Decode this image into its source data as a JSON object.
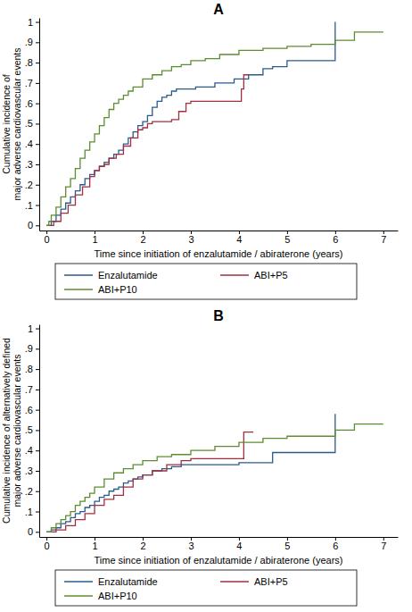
{
  "chart_data": [
    {
      "type": "line",
      "title": "A",
      "xlabel": "Time since initiation of enzalutamide / abiraterone (years)",
      "ylabel": [
        "Cumulative incidence of",
        "major adverse cardiovascular events"
      ],
      "xlim": [
        -0.15,
        7.3
      ],
      "xticks": [
        0,
        1,
        2,
        3,
        4,
        5,
        6,
        7
      ],
      "ylim": [
        -0.025,
        1.02
      ],
      "yticks": [
        0,
        {
          "value": 0.1,
          "label": ".1"
        },
        {
          "value": 0.2,
          "label": ".2"
        },
        {
          "value": 0.3,
          "label": ".3"
        },
        {
          "value": 0.4,
          "label": ".4"
        },
        {
          "value": 0.5,
          "label": ".5"
        },
        {
          "value": 0.6,
          "label": ".6"
        },
        {
          "value": 0.7,
          "label": ".7"
        },
        {
          "value": 0.8,
          "label": ".8"
        },
        {
          "value": 0.9,
          "label": ".9"
        },
        1
      ],
      "grid": false,
      "legend": "bottom",
      "line_style": "step",
      "series": [
        {
          "name": "Enzalutamide",
          "color": "#2a5b8c",
          "x": [
            0,
            0.1,
            0.2,
            0.3,
            0.4,
            0.5,
            0.6,
            0.7,
            0.8,
            0.9,
            1.0,
            1.1,
            1.2,
            1.3,
            1.4,
            1.5,
            1.6,
            1.7,
            1.8,
            1.9,
            2.0,
            2.1,
            2.2,
            2.3,
            2.4,
            2.5,
            2.6,
            2.7,
            2.9,
            3.1,
            3.5,
            3.9,
            4.2,
            4.5,
            4.7,
            5.0,
            6.0
          ],
          "values": [
            0,
            0.02,
            0.05,
            0.08,
            0.11,
            0.14,
            0.17,
            0.2,
            0.23,
            0.25,
            0.27,
            0.29,
            0.31,
            0.33,
            0.35,
            0.37,
            0.4,
            0.43,
            0.46,
            0.49,
            0.51,
            0.54,
            0.58,
            0.61,
            0.63,
            0.64,
            0.66,
            0.67,
            0.67,
            0.68,
            0.7,
            0.72,
            0.74,
            0.77,
            0.78,
            0.81,
            1.0
          ]
        },
        {
          "name": "ABI+P5",
          "color": "#a03040",
          "x": [
            0,
            0.15,
            0.3,
            0.45,
            0.6,
            0.75,
            0.9,
            1.0,
            1.1,
            1.2,
            1.3,
            1.45,
            1.6,
            1.75,
            1.9,
            2.0,
            2.1,
            2.2,
            2.6,
            2.75,
            2.9,
            3.0,
            4.05,
            4.1,
            4.15,
            4.2
          ],
          "values": [
            0,
            0.02,
            0.06,
            0.1,
            0.15,
            0.19,
            0.24,
            0.27,
            0.29,
            0.3,
            0.33,
            0.35,
            0.39,
            0.43,
            0.47,
            0.48,
            0.5,
            0.51,
            0.52,
            0.56,
            0.6,
            0.61,
            0.67,
            0.74,
            0.74,
            0.74
          ]
        },
        {
          "name": "ABI+P10",
          "color": "#5e8c31",
          "x": [
            0,
            0.05,
            0.1,
            0.2,
            0.3,
            0.4,
            0.5,
            0.6,
            0.7,
            0.8,
            0.9,
            1.0,
            1.1,
            1.2,
            1.3,
            1.4,
            1.5,
            1.6,
            1.7,
            1.8,
            2.0,
            2.2,
            2.4,
            2.6,
            2.8,
            3.0,
            3.3,
            3.6,
            4.0,
            4.5,
            5.0,
            5.5,
            6.0,
            6.4,
            7.0
          ],
          "values": [
            0,
            0.02,
            0.05,
            0.09,
            0.14,
            0.19,
            0.23,
            0.28,
            0.33,
            0.37,
            0.41,
            0.45,
            0.49,
            0.53,
            0.57,
            0.6,
            0.62,
            0.64,
            0.66,
            0.68,
            0.72,
            0.74,
            0.76,
            0.78,
            0.79,
            0.81,
            0.82,
            0.84,
            0.86,
            0.87,
            0.88,
            0.89,
            0.91,
            0.95,
            0.95
          ]
        }
      ]
    },
    {
      "type": "line",
      "title": "B",
      "xlabel": "Time since initiation of enzalutamide / abiraterone (years)",
      "ylabel": [
        "Cumulative incidence of alternatively defined",
        "major adverse cardiovascular events"
      ],
      "xlim": [
        -0.15,
        7.3
      ],
      "xticks": [
        0,
        1,
        2,
        3,
        4,
        5,
        6,
        7
      ],
      "ylim": [
        -0.025,
        1.02
      ],
      "yticks": [
        0,
        {
          "value": 0.1,
          "label": ".1"
        },
        {
          "value": 0.2,
          "label": ".2"
        },
        {
          "value": 0.3,
          "label": ".3"
        },
        {
          "value": 0.4,
          "label": ".4"
        },
        {
          "value": 0.5,
          "label": ".5"
        },
        {
          "value": 0.6,
          "label": ".6"
        },
        {
          "value": 0.7,
          "label": ".7"
        },
        {
          "value": 0.8,
          "label": ".8"
        },
        {
          "value": 0.9,
          "label": ".9"
        },
        1
      ],
      "grid": false,
      "legend": "bottom",
      "line_style": "step",
      "series": [
        {
          "name": "Enzalutamide",
          "color": "#2a5b8c",
          "x": [
            0,
            0.1,
            0.2,
            0.3,
            0.4,
            0.5,
            0.6,
            0.7,
            0.8,
            0.9,
            1.0,
            1.1,
            1.2,
            1.3,
            1.4,
            1.5,
            1.6,
            1.7,
            1.8,
            1.9,
            2.0,
            2.2,
            2.4,
            2.6,
            2.8,
            3.0,
            3.5,
            4.0,
            4.7,
            6.0
          ],
          "values": [
            0,
            0.01,
            0.02,
            0.04,
            0.05,
            0.07,
            0.09,
            0.1,
            0.12,
            0.13,
            0.15,
            0.17,
            0.18,
            0.2,
            0.21,
            0.22,
            0.24,
            0.25,
            0.26,
            0.27,
            0.28,
            0.3,
            0.31,
            0.32,
            0.33,
            0.33,
            0.33,
            0.34,
            0.39,
            0.58
          ]
        },
        {
          "name": "ABI+P5",
          "color": "#a03040",
          "x": [
            0,
            0.2,
            0.4,
            0.6,
            0.8,
            1.0,
            1.2,
            1.4,
            1.6,
            1.8,
            2.0,
            2.2,
            2.5,
            2.8,
            3.0,
            4.05,
            4.1,
            4.3
          ],
          "values": [
            0,
            0.01,
            0.03,
            0.06,
            0.09,
            0.13,
            0.16,
            0.18,
            0.22,
            0.26,
            0.28,
            0.3,
            0.33,
            0.35,
            0.36,
            0.36,
            0.49,
            0.49
          ]
        },
        {
          "name": "ABI+P10",
          "color": "#5e8c31",
          "x": [
            0,
            0.1,
            0.2,
            0.3,
            0.4,
            0.5,
            0.6,
            0.7,
            0.8,
            0.9,
            1.0,
            1.2,
            1.4,
            1.6,
            1.8,
            2.0,
            2.3,
            2.6,
            3.0,
            3.5,
            4.0,
            4.5,
            5.0,
            6.0,
            6.4,
            7.0
          ],
          "values": [
            0,
            0.02,
            0.04,
            0.06,
            0.08,
            0.1,
            0.13,
            0.15,
            0.17,
            0.19,
            0.22,
            0.26,
            0.29,
            0.31,
            0.33,
            0.35,
            0.37,
            0.38,
            0.4,
            0.42,
            0.44,
            0.46,
            0.47,
            0.5,
            0.53,
            0.53
          ]
        }
      ]
    }
  ]
}
